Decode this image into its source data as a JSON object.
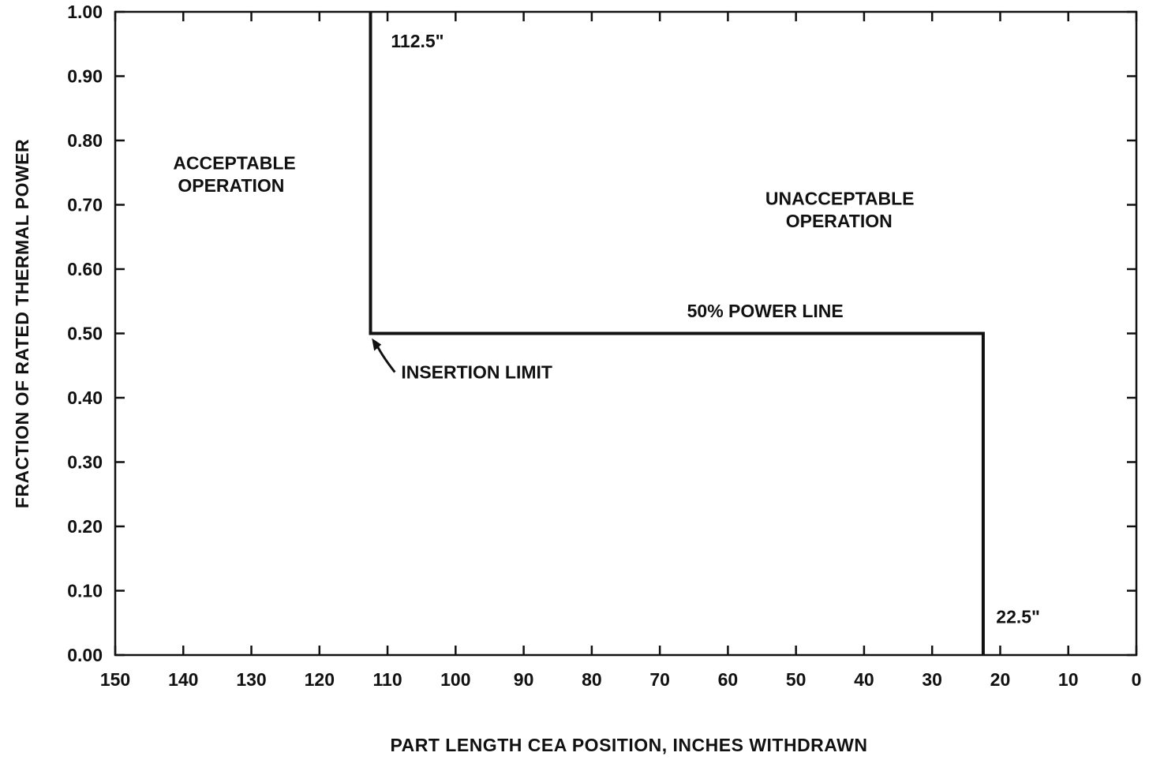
{
  "chart_data": {
    "type": "line",
    "title": "",
    "xlabel": "PART LENGTH CEA POSITION, INCHES WITHDRAWN",
    "ylabel": "FRACTION OF RATED THERMAL POWER",
    "xlim": [
      150,
      0
    ],
    "ylim": [
      0,
      1.0
    ],
    "x_ticks": [
      150,
      140,
      130,
      120,
      110,
      100,
      90,
      80,
      70,
      60,
      50,
      40,
      30,
      20,
      10,
      0
    ],
    "x_tick_labels": [
      "150",
      "140",
      "130",
      "120",
      "110",
      "100",
      "90",
      "80",
      "70",
      "60",
      "50",
      "40",
      "30",
      "20",
      "10",
      "0"
    ],
    "y_ticks": [
      0,
      0.1,
      0.2,
      0.3,
      0.4,
      0.5,
      0.6,
      0.7,
      0.8,
      0.9,
      1.0
    ],
    "y_tick_labels": [
      "0.00",
      "0.10",
      "0.20",
      "0.30",
      "0.40",
      "0.50",
      "0.60",
      "0.70",
      "0.80",
      "0.90",
      "1.00"
    ],
    "grid": false,
    "series": [
      {
        "x": [
          112.5,
          112.5,
          22.5,
          22.5
        ],
        "y": [
          1.0,
          0.5,
          0.5,
          0.0
        ]
      }
    ],
    "annotations": [
      {
        "text": "112.5\"",
        "x": 109.5,
        "y": 0.945
      },
      {
        "text": "22.5\"",
        "x": 20.6,
        "y": 0.05
      },
      {
        "text": "50% POWER LINE",
        "x": 66,
        "y": 0.525
      },
      {
        "text": "INSERTION LIMIT",
        "x": 108,
        "y": 0.43,
        "arrow_to": [
          112.3,
          0.495
        ]
      },
      {
        "text": "ACCEPTABLE",
        "x": 141.5,
        "y": 0.755
      },
      {
        "text": "OPERATION",
        "x": 140.8,
        "y": 0.72
      },
      {
        "text": "UNACCEPTABLE",
        "x": 54.5,
        "y": 0.7
      },
      {
        "text": "OPERATION",
        "x": 51.5,
        "y": 0.665
      }
    ],
    "colors": {
      "line": "#111111",
      "background": "#ffffff"
    }
  }
}
